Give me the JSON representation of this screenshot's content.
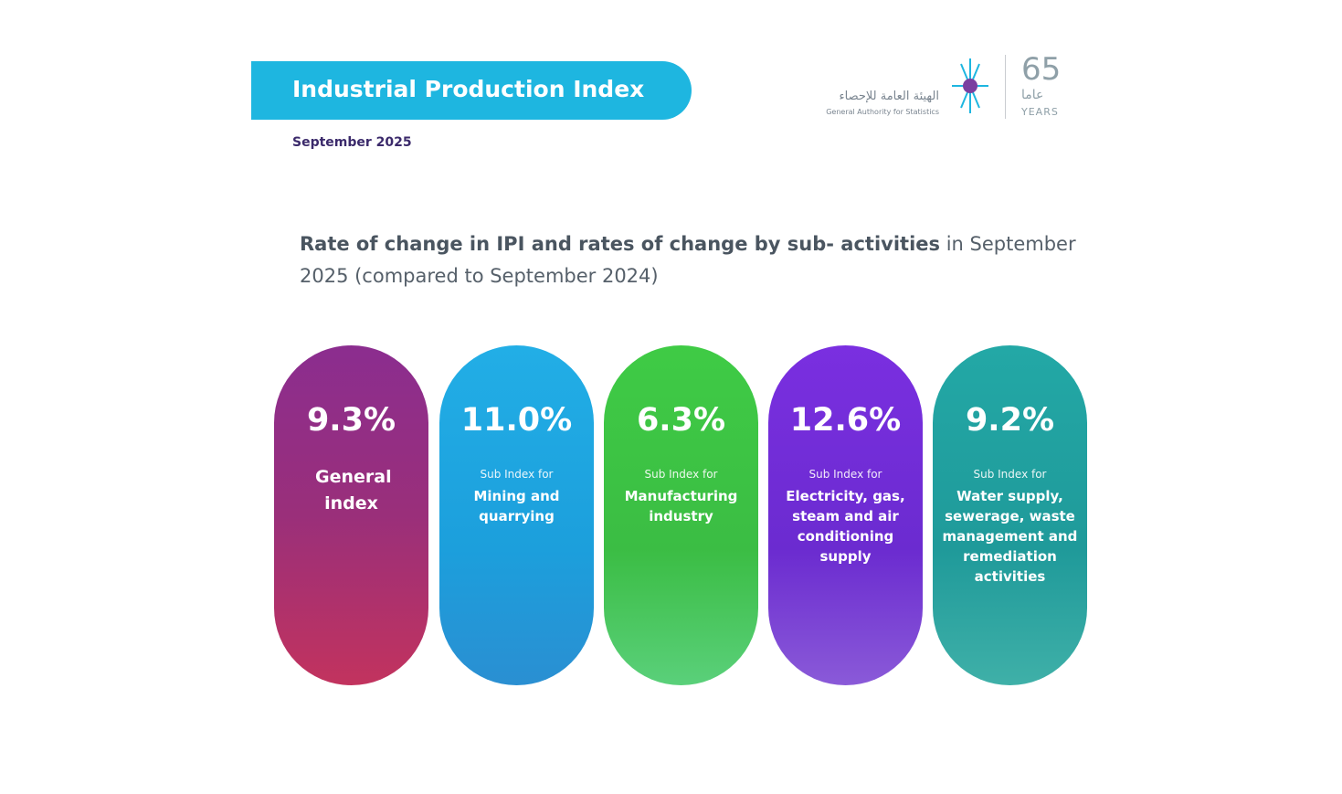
{
  "header": {
    "title": "Industrial Production Index",
    "date": "September 2025"
  },
  "logo": {
    "arabic_name": "الهيئة العامة للإحصاء",
    "english_name": "General Authority for Statistics",
    "years_number": "65",
    "years_arabic": "عاما",
    "years_english": "YEARS"
  },
  "subtitle": {
    "bold": "Rate of change in IPI and rates of change by sub- activities",
    "rest": " in September 2025 (compared to September 2024)"
  },
  "cards": [
    {
      "value": "9.3%",
      "name": "General index"
    },
    {
      "value": "11.0%",
      "prefix": "Sub Index for",
      "name": "Mining and quarrying"
    },
    {
      "value": "6.3%",
      "prefix": "Sub Index for",
      "name": "Manufacturing industry"
    },
    {
      "value": "12.6%",
      "prefix": "Sub Index for",
      "name": "Electricity, gas, steam and air conditioning supply"
    },
    {
      "value": "9.2%",
      "prefix": "Sub Index for",
      "name": "Water supply, sewerage, waste management and remediation activities"
    }
  ]
}
